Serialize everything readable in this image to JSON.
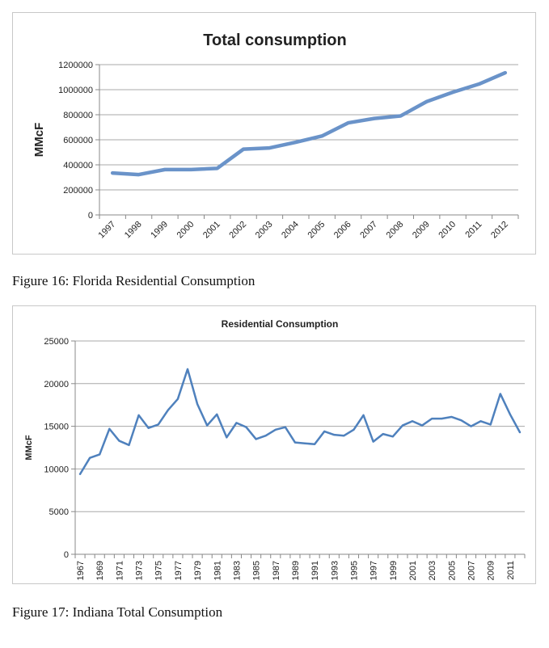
{
  "chart_data": [
    {
      "type": "line",
      "title": "Total consumption",
      "xlabel": "",
      "ylabel": "MMcF",
      "categories": [
        "1997",
        "1998",
        "1999",
        "2000",
        "2001",
        "2002",
        "2003",
        "2004",
        "2005",
        "2006",
        "2007",
        "2008",
        "2009",
        "2010",
        "2011",
        "2012"
      ],
      "series": [
        {
          "values": [
            335000,
            322000,
            362000,
            362000,
            372000,
            525000,
            535000,
            580000,
            630000,
            735000,
            770000,
            790000,
            905000,
            980000,
            1045000,
            1135000
          ]
        }
      ],
      "ylim": [
        0,
        1200000
      ],
      "yticks": [
        "0",
        "200000",
        "400000",
        "600000",
        "800000",
        "1000000",
        "1200000"
      ],
      "grid": true,
      "line_color": "#6a93c9"
    },
    {
      "type": "line",
      "title": "Residential Consumption",
      "xlabel": "",
      "ylabel": "MMcF",
      "x": [
        1967,
        1968,
        1969,
        1970,
        1971,
        1972,
        1973,
        1974,
        1975,
        1976,
        1977,
        1978,
        1979,
        1980,
        1981,
        1982,
        1983,
        1984,
        1985,
        1986,
        1987,
        1988,
        1989,
        1990,
        1991,
        1992,
        1993,
        1994,
        1995,
        1996,
        1997,
        1998,
        1999,
        2000,
        2001,
        2002,
        2003,
        2004,
        2005,
        2006,
        2007,
        2008,
        2009,
        2010,
        2011,
        2012
      ],
      "categories": [
        "1967",
        "1969",
        "1971",
        "1973",
        "1975",
        "1977",
        "1979",
        "1981",
        "1983",
        "1985",
        "1987",
        "1989",
        "1991",
        "1993",
        "1995",
        "1997",
        "1999",
        "2001",
        "2003",
        "2005",
        "2007",
        "2009",
        "2011"
      ],
      "series": [
        {
          "values": [
            9400,
            11300,
            11700,
            14700,
            13300,
            12800,
            16300,
            14800,
            15200,
            16900,
            18200,
            21700,
            17600,
            15100,
            16400,
            13700,
            15400,
            14900,
            13500,
            13900,
            14600,
            14900,
            13100,
            13000,
            12900,
            14400,
            14000,
            13900,
            14600,
            16300,
            13200,
            14100,
            13800,
            15100,
            15600,
            15100,
            15900,
            15900,
            16100,
            15700,
            15000,
            15600,
            15200,
            18800,
            16400,
            14300
          ]
        }
      ],
      "ylim": [
        0,
        25000
      ],
      "yticks": [
        "0",
        "5000",
        "10000",
        "15000",
        "20000",
        "25000"
      ],
      "grid": true,
      "line_color": "#4f81bd"
    }
  ],
  "captions": {
    "fig16": "Figure 16: Florida Residential Consumption",
    "fig17": "Figure 17: Indiana Total Consumption"
  }
}
